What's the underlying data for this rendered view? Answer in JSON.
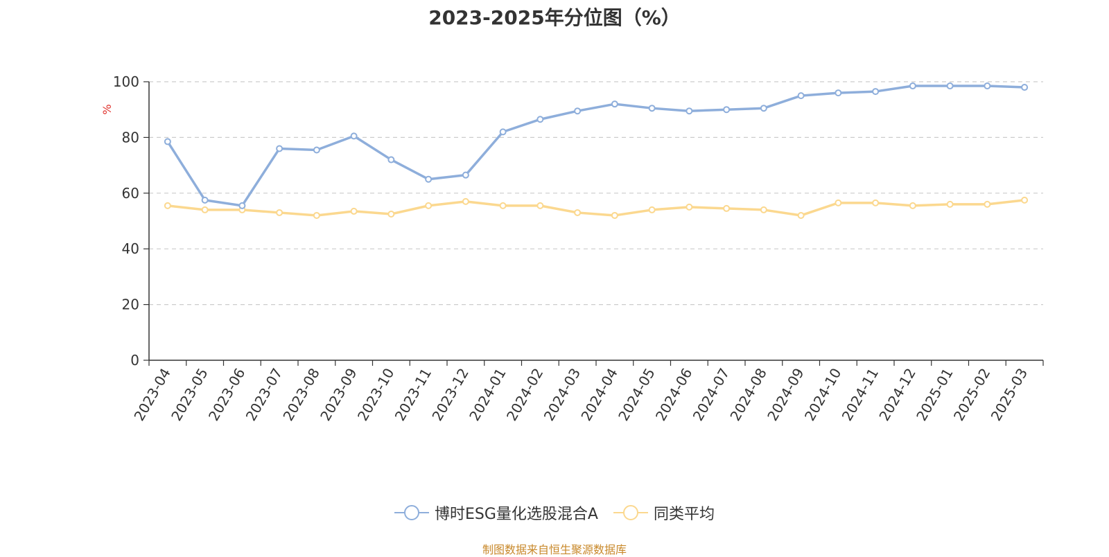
{
  "chart_data": {
    "type": "line",
    "title": "2023-2025年分位图（%）",
    "ylabel": "%",
    "xlabel": "",
    "ylim": [
      0,
      100
    ],
    "yticks": [
      0,
      20,
      40,
      60,
      80,
      100
    ],
    "grid": true,
    "legend_position": "bottom",
    "categories": [
      "2023-04",
      "2023-05",
      "2023-06",
      "2023-07",
      "2023-08",
      "2023-09",
      "2023-10",
      "2023-11",
      "2023-12",
      "2024-01",
      "2024-02",
      "2024-03",
      "2024-04",
      "2024-05",
      "2024-06",
      "2024-07",
      "2024-08",
      "2024-09",
      "2024-10",
      "2024-11",
      "2024-12",
      "2025-01",
      "2025-02",
      "2025-03"
    ],
    "series": [
      {
        "name": "博时ESG量化选股混合A",
        "color": "#8eaedb",
        "values": [
          78.5,
          57.5,
          55.5,
          76.0,
          75.5,
          80.5,
          72.0,
          65.0,
          66.5,
          82.0,
          86.5,
          89.5,
          92.0,
          90.5,
          89.5,
          90.0,
          90.5,
          95.0,
          96.0,
          96.5,
          98.5,
          98.5,
          98.5,
          98.0
        ]
      },
      {
        "name": "同类平均",
        "color": "#fbd88f",
        "values": [
          55.5,
          54.0,
          54.0,
          53.0,
          52.0,
          53.5,
          52.5,
          55.5,
          57.0,
          55.5,
          55.5,
          53.0,
          52.0,
          54.0,
          55.0,
          54.5,
          54.0,
          52.0,
          56.5,
          56.5,
          55.5,
          56.0,
          56.0,
          57.5
        ]
      }
    ]
  },
  "source_note": "制图数据来自恒生聚源数据库",
  "colors": {
    "axis": "#333333",
    "grid": "#cccccc",
    "ylabel": "#e0322d"
  }
}
